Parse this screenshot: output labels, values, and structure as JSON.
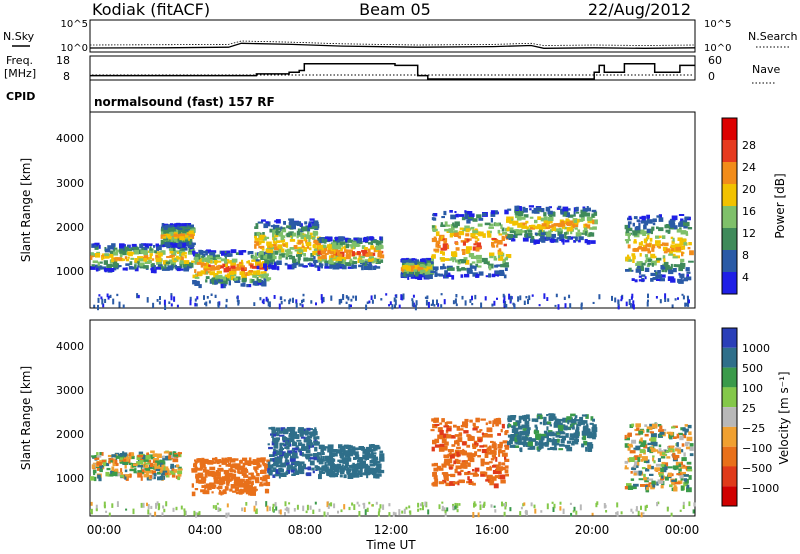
{
  "header": {
    "station": "Kodiak (fitACF)",
    "beam": "Beam 05",
    "date": "22/Aug/2012"
  },
  "noise_panel": {
    "left_label": "N.Sky",
    "right_label": "N.Search",
    "left_ticks": [
      "10^5",
      "10^0"
    ],
    "right_ticks": [
      "10^5",
      "10^0"
    ]
  },
  "freq_panel": {
    "left_label_1": "Freq.",
    "left_label_2": "[MHz]",
    "right_label": "Nave",
    "left_ticks": [
      "18",
      "8"
    ],
    "right_ticks": [
      "60",
      "0"
    ]
  },
  "cpid": {
    "label": "CPID",
    "value": "normalsound (fast) 157 RF"
  },
  "x_axis": {
    "title": "Time UT",
    "ticks": [
      "00:00",
      "04:00",
      "08:00",
      "12:00",
      "16:00",
      "20:00",
      "00:00"
    ]
  },
  "range_axis": {
    "title": "Slant Range [km]",
    "ticks": [
      "1000",
      "2000",
      "3000",
      "4000"
    ]
  },
  "power_bar": {
    "title": "Power [dB]",
    "ticks": [
      "4",
      "8",
      "12",
      "16",
      "20",
      "24",
      "28"
    ],
    "colors": [
      "#1f1fe6",
      "#2a5aa6",
      "#3f8a5a",
      "#7fc06a",
      "#f2c200",
      "#f28c1a",
      "#e63a1f",
      "#dd0000"
    ]
  },
  "velocity_bar": {
    "title": "Velocity [m s⁻¹]",
    "ticks": [
      "1000",
      "500",
      "100",
      "25",
      "−25",
      "−100",
      "−500",
      "−1000"
    ],
    "colors": [
      "#2a3fb8",
      "#2f6f8a",
      "#3a9a4a",
      "#84c84a",
      "#b8b8b8",
      "#f0a030",
      "#e8701a",
      "#e03a1a",
      "#d00000"
    ]
  },
  "chart_data": {
    "type": "heatmap",
    "x_range_hours": [
      0,
      24
    ],
    "y_range_km": [
      180,
      4600
    ],
    "noise_series": {
      "sky_log10": [
        [
          0,
          0.35
        ],
        [
          3,
          0.4
        ],
        [
          5.5,
          0.5
        ],
        [
          6,
          1.2
        ],
        [
          8,
          1.0
        ],
        [
          10,
          0.7
        ],
        [
          13,
          0.5
        ],
        [
          16,
          0.6
        ],
        [
          17.5,
          0.8
        ],
        [
          18,
          0.3
        ],
        [
          20,
          0.4
        ],
        [
          22,
          0.3
        ],
        [
          24,
          0.4
        ]
      ],
      "search_log10": [
        [
          0,
          0.9
        ],
        [
          3,
          0.95
        ],
        [
          5.5,
          1.0
        ],
        [
          6,
          1.6
        ],
        [
          8,
          1.4
        ],
        [
          10,
          1.1
        ],
        [
          13,
          0.9
        ],
        [
          16,
          1.0
        ],
        [
          17.5,
          1.2
        ],
        [
          18,
          0.8
        ],
        [
          20,
          0.9
        ],
        [
          22,
          0.8
        ],
        [
          24,
          0.9
        ]
      ]
    },
    "freq_steps_mhz": [
      [
        0,
        10
      ],
      [
        6.6,
        10
      ],
      [
        6.6,
        11
      ],
      [
        7.9,
        11
      ],
      [
        7.9,
        12
      ],
      [
        8.3,
        12
      ],
      [
        8.3,
        13
      ],
      [
        8.5,
        13
      ],
      [
        8.5,
        17
      ],
      [
        12.1,
        17
      ],
      [
        12.1,
        16
      ],
      [
        13.0,
        16
      ],
      [
        13.0,
        10
      ],
      [
        13.4,
        10
      ],
      [
        13.4,
        8
      ],
      [
        14.6,
        8
      ],
      [
        14.6,
        8
      ],
      [
        20.0,
        8
      ],
      [
        20.0,
        12
      ],
      [
        20.2,
        12
      ],
      [
        20.2,
        16
      ],
      [
        20.4,
        16
      ],
      [
        20.4,
        12
      ],
      [
        21.2,
        12
      ],
      [
        21.2,
        17
      ],
      [
        22.4,
        17
      ],
      [
        22.4,
        12
      ],
      [
        23.4,
        12
      ],
      [
        23.4,
        16
      ],
      [
        24,
        16
      ]
    ],
    "power_echo_regions": [
      {
        "t": [
          0.0,
          4.0
        ],
        "range_km": [
          1050,
          1650
        ],
        "peak_db": 24
      },
      {
        "t": [
          2.8,
          4.0
        ],
        "range_km": [
          1600,
          2100
        ],
        "peak_db": 24
      },
      {
        "t": [
          4.0,
          7.0
        ],
        "range_km": [
          700,
          1500
        ],
        "peak_db": 28
      },
      {
        "t": [
          6.5,
          9.0
        ],
        "range_km": [
          1100,
          2200
        ],
        "peak_db": 24
      },
      {
        "t": [
          9.0,
          11.5
        ],
        "range_km": [
          1100,
          1800
        ],
        "peak_db": 28
      },
      {
        "t": [
          12.3,
          13.5
        ],
        "range_km": [
          900,
          1300
        ],
        "peak_db": 24
      },
      {
        "t": [
          13.5,
          16.5
        ],
        "range_km": [
          900,
          2400
        ],
        "peak_db": 28
      },
      {
        "t": [
          16.5,
          20.0
        ],
        "range_km": [
          1700,
          2500
        ],
        "peak_db": 24
      },
      {
        "t": [
          21.2,
          23.8
        ],
        "range_km": [
          800,
          2300
        ],
        "peak_db": 24
      }
    ],
    "velocity_echo_regions": [
      {
        "t": [
          0.0,
          3.5
        ],
        "range_km": [
          1050,
          1650
        ],
        "velocity_ms": 0
      },
      {
        "t": [
          4.0,
          7.0
        ],
        "range_km": [
          700,
          1500
        ],
        "velocity_ms": -300
      },
      {
        "t": [
          7.0,
          9.0
        ],
        "range_km": [
          1100,
          2200
        ],
        "velocity_ms": 400
      },
      {
        "t": [
          9.0,
          11.5
        ],
        "range_km": [
          1100,
          1800
        ],
        "velocity_ms": 300
      },
      {
        "t": [
          13.5,
          16.5
        ],
        "range_km": [
          900,
          2400
        ],
        "velocity_ms": -400
      },
      {
        "t": [
          16.5,
          20.0
        ],
        "range_km": [
          1700,
          2500
        ],
        "velocity_ms": 200
      },
      {
        "t": [
          21.2,
          23.8
        ],
        "range_km": [
          800,
          2300
        ],
        "velocity_ms": 0
      }
    ]
  }
}
